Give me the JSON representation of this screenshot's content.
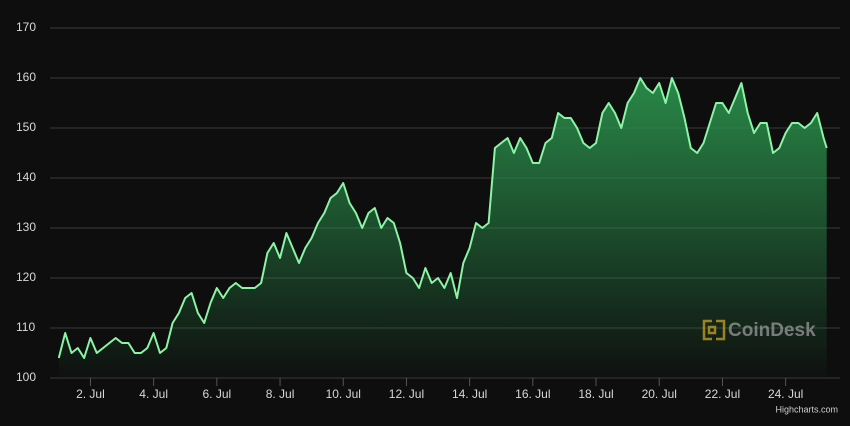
{
  "chart_data": {
    "type": "area",
    "x": [
      1.0,
      1.2,
      1.4,
      1.6,
      1.8,
      2.0,
      2.2,
      2.4,
      2.6,
      2.8,
      3.0,
      3.2,
      3.4,
      3.6,
      3.8,
      4.0,
      4.2,
      4.4,
      4.6,
      4.8,
      5.0,
      5.2,
      5.4,
      5.6,
      5.8,
      6.0,
      6.2,
      6.4,
      6.6,
      6.8,
      7.0,
      7.2,
      7.4,
      7.6,
      7.8,
      8.0,
      8.2,
      8.4,
      8.6,
      8.8,
      9.0,
      9.2,
      9.4,
      9.6,
      9.8,
      10.0,
      10.2,
      10.4,
      10.6,
      10.8,
      11.0,
      11.2,
      11.4,
      11.6,
      11.8,
      12.0,
      12.2,
      12.4,
      12.6,
      12.8,
      13.0,
      13.2,
      13.4,
      13.6,
      13.8,
      14.0,
      14.2,
      14.4,
      14.6,
      14.8,
      15.0,
      15.2,
      15.4,
      15.6,
      15.8,
      16.0,
      16.2,
      16.4,
      16.6,
      16.8,
      17.0,
      17.2,
      17.4,
      17.6,
      17.8,
      18.0,
      18.2,
      18.4,
      18.6,
      18.8,
      19.0,
      19.2,
      19.4,
      19.6,
      19.8,
      20.0,
      20.2,
      20.4,
      20.6,
      20.8,
      21.0,
      21.2,
      21.4,
      21.6,
      21.8,
      22.0,
      22.2,
      22.4,
      22.6,
      22.8,
      23.0,
      23.2,
      23.4,
      23.6,
      23.8,
      24.0,
      24.2,
      24.4,
      24.6,
      24.8,
      25.0,
      25.2,
      25.3
    ],
    "values": [
      104,
      109,
      105,
      106,
      104,
      108,
      105,
      106,
      107,
      108,
      107,
      107,
      105,
      105,
      106,
      109,
      105,
      106,
      111,
      113,
      116,
      117,
      113,
      111,
      115,
      118,
      116,
      118,
      119,
      118,
      118,
      118,
      119,
      125,
      127,
      124,
      129,
      126,
      123,
      126,
      128,
      131,
      133,
      136,
      137,
      139,
      135,
      133,
      130,
      133,
      134,
      130,
      132,
      131,
      127,
      121,
      120,
      118,
      122,
      119,
      120,
      118,
      121,
      116,
      123,
      126,
      131,
      130,
      131,
      146,
      147,
      148,
      145,
      148,
      146,
      143,
      143,
      147,
      148,
      153,
      152,
      152,
      150,
      147,
      146,
      147,
      153,
      155,
      153,
      150,
      155,
      157,
      160,
      158,
      157,
      159,
      155,
      160,
      157,
      152,
      146,
      145,
      147,
      151,
      155,
      155,
      153,
      156,
      159,
      153,
      149,
      151,
      151,
      145,
      146,
      149,
      151,
      151,
      150,
      151,
      153,
      148,
      146
    ],
    "color": "#8af5a4",
    "xlim": [
      0.72,
      25.72
    ],
    "xticks": [
      {
        "value": 2,
        "label": "2. Jul"
      },
      {
        "value": 4,
        "label": "4. Jul"
      },
      {
        "value": 6,
        "label": "6. Jul"
      },
      {
        "value": 8,
        "label": "8. Jul"
      },
      {
        "value": 10,
        "label": "10. Jul"
      },
      {
        "value": 12,
        "label": "12. Jul"
      },
      {
        "value": 14,
        "label": "14. Jul"
      },
      {
        "value": 16,
        "label": "16. Jul"
      },
      {
        "value": 18,
        "label": "18. Jul"
      },
      {
        "value": 20,
        "label": "20. Jul"
      },
      {
        "value": 22,
        "label": "22. Jul"
      },
      {
        "value": 24,
        "label": "24. Jul"
      }
    ],
    "ylim": [
      100,
      170
    ],
    "yticks": [
      100,
      110,
      120,
      130,
      140,
      150,
      160,
      170
    ],
    "grid": true,
    "watermark": "CoinDesk",
    "credit": "Highcharts.com"
  }
}
